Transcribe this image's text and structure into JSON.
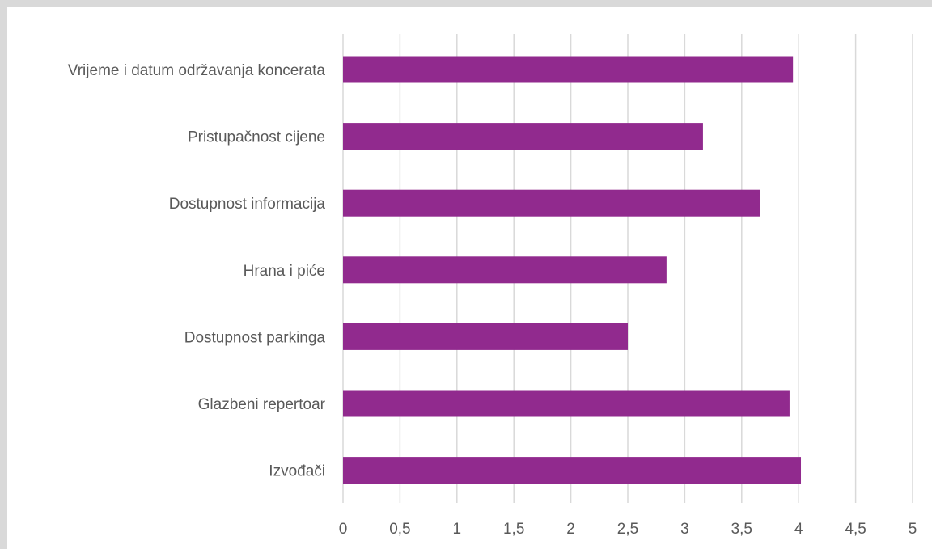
{
  "chart_data": {
    "type": "bar",
    "orientation": "horizontal",
    "categories": [
      "Vrijeme i datum održavanja koncerata",
      "Pristupačnost cijene",
      "Dostupnost informacija",
      "Hrana i piće",
      "Dostupnost parkinga",
      "Glazbeni repertoar",
      "Izvođači"
    ],
    "values": [
      3.95,
      3.16,
      3.66,
      2.84,
      2.5,
      3.92,
      4.02
    ],
    "title": "",
    "xlabel": "",
    "ylabel": "",
    "xlim": [
      0,
      5
    ],
    "ticks": [
      0,
      0.5,
      1,
      1.5,
      2,
      2.5,
      3,
      3.5,
      4,
      4.5,
      5
    ],
    "tick_labels": [
      "0",
      "0,5",
      "1",
      "1,5",
      "2",
      "2,5",
      "3",
      "3,5",
      "4",
      "4,5",
      "5"
    ],
    "grid": "vertical",
    "legend": "none",
    "colors": {
      "bar": "#912a8e",
      "grid": "#d9d9d9",
      "text": "#595959",
      "frame": "#d9d9d9"
    }
  }
}
